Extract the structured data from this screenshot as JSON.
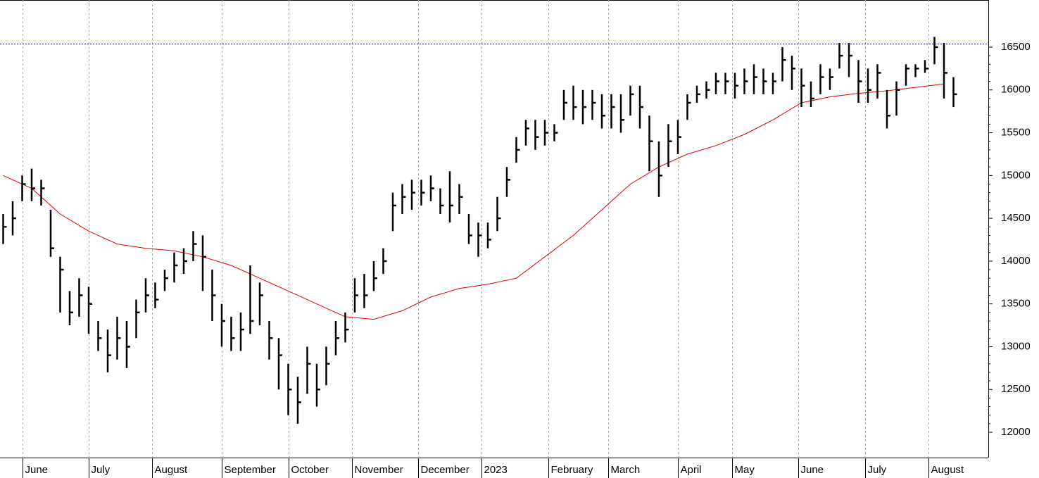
{
  "chart_data": {
    "type": "ohlc",
    "x": [
      0,
      3,
      6,
      9,
      12,
      15,
      18,
      21,
      24,
      27,
      30,
      33,
      36,
      39,
      42,
      45,
      48,
      51,
      54,
      57,
      60,
      63,
      66,
      69,
      72,
      75,
      78,
      81,
      84,
      87,
      90,
      93,
      96,
      99,
      102,
      105,
      108,
      111,
      114,
      117,
      120,
      123,
      126,
      129,
      132,
      135,
      138,
      141,
      144,
      147,
      150,
      153,
      156,
      159,
      162,
      165,
      168,
      171,
      174,
      177,
      180,
      183,
      186,
      189,
      192,
      195,
      198,
      201,
      204,
      207,
      210,
      213,
      216,
      219,
      222,
      225,
      228,
      231,
      234,
      237,
      240,
      243,
      246,
      249,
      252,
      255,
      258,
      261,
      264,
      267,
      270,
      273,
      276,
      279,
      282,
      285,
      288,
      291,
      294,
      297,
      300
    ],
    "high": [
      14550,
      14700,
      15000,
      15080,
      14950,
      14600,
      14050,
      13650,
      13800,
      13700,
      13300,
      13200,
      13350,
      13300,
      13550,
      13800,
      13750,
      13900,
      14100,
      14150,
      14350,
      14300,
      13900,
      13500,
      13350,
      13400,
      13950,
      13750,
      13300,
      13100,
      12800,
      12650,
      13000,
      12800,
      13000,
      13300,
      13400,
      13800,
      13850,
      14000,
      14150,
      14800,
      14900,
      14950,
      14950,
      15000,
      14850,
      15050,
      14900,
      14550,
      14450,
      14450,
      14750,
      15100,
      15450,
      15650,
      15650,
      15650,
      15600,
      16000,
      16050,
      16000,
      16000,
      15950,
      15950,
      15950,
      16050,
      16050,
      15700,
      15400,
      15600,
      15650,
      15950,
      16050,
      16100,
      16200,
      16200,
      16200,
      16250,
      16300,
      16250,
      16200,
      16500,
      16400,
      16250,
      16100,
      16300,
      16250,
      16550,
      16550,
      16350,
      16250,
      16300,
      16000,
      16100,
      16300,
      16300,
      16350,
      16620,
      16550,
      16150
    ],
    "low": [
      14200,
      14300,
      14700,
      14700,
      14650,
      14050,
      13400,
      13250,
      13350,
      13150,
      12950,
      12700,
      12850,
      12750,
      13100,
      13400,
      13450,
      13650,
      13750,
      13850,
      14000,
      13650,
      13300,
      13000,
      12950,
      12950,
      13150,
      13250,
      12850,
      12500,
      12200,
      12100,
      12450,
      12300,
      12550,
      12900,
      13050,
      13400,
      13450,
      13650,
      13850,
      14350,
      14550,
      14600,
      14650,
      14700,
      14550,
      14450,
      14550,
      14200,
      14050,
      14150,
      14350,
      14750,
      15150,
      15350,
      15300,
      15350,
      15400,
      15650,
      15650,
      15600,
      15650,
      15550,
      15550,
      15500,
      15700,
      15550,
      15050,
      14750,
      15100,
      15250,
      15650,
      15850,
      15900,
      15950,
      15950,
      15900,
      15950,
      15950,
      15950,
      15950,
      16100,
      16000,
      15800,
      15800,
      15950,
      16000,
      16250,
      16150,
      15850,
      15850,
      15900,
      15550,
      15700,
      16050,
      16150,
      16200,
      16300,
      15900,
      15800
    ],
    "close": [
      14400,
      14500,
      14900,
      14850,
      14850,
      14150,
      13900,
      13400,
      13600,
      13500,
      13100,
      12900,
      13100,
      13000,
      13400,
      13600,
      13550,
      13800,
      13950,
      14000,
      14200,
      14050,
      13600,
      13300,
      13100,
      13200,
      13300,
      13600,
      13100,
      12900,
      12500,
      12350,
      12800,
      12500,
      12800,
      13100,
      13200,
      13600,
      13600,
      13800,
      14000,
      14650,
      14750,
      14800,
      14800,
      14850,
      14650,
      14650,
      14750,
      14300,
      14300,
      14250,
      14500,
      14950,
      15300,
      15550,
      15450,
      15500,
      15500,
      15850,
      15800,
      15800,
      15850,
      15700,
      15800,
      15650,
      15950,
      15800,
      15400,
      15000,
      15400,
      15450,
      15850,
      15950,
      16000,
      16100,
      16100,
      16050,
      16100,
      16150,
      16100,
      16100,
      16350,
      16250,
      16050,
      15900,
      16150,
      16150,
      16400,
      16400,
      16100,
      16000,
      16200,
      15700,
      16000,
      16250,
      16250,
      16250,
      16500,
      16200,
      15950
    ],
    "color": "#000000",
    "moving_average": {
      "color": "#e00000",
      "x": [
        0,
        9,
        18,
        27,
        36,
        45,
        54,
        63,
        72,
        81,
        90,
        99,
        108,
        117,
        126,
        135,
        144,
        153,
        162,
        171,
        180,
        189,
        198,
        207,
        216,
        225,
        234,
        243,
        252,
        261,
        270,
        279,
        288,
        297
      ],
      "values": [
        15000,
        14850,
        14550,
        14350,
        14200,
        14150,
        14120,
        14050,
        13950,
        13800,
        13650,
        13500,
        13350,
        13320,
        13420,
        13580,
        13680,
        13730,
        13800,
        14050,
        14300,
        14600,
        14900,
        15100,
        15250,
        15350,
        15480,
        15650,
        15850,
        15920,
        15960,
        15990,
        16030,
        16070
      ]
    },
    "reference_line": {
      "value": 16540,
      "color": "#000080"
    },
    "xlim": [
      -1,
      311
    ],
    "xticks": [
      {
        "value": 6,
        "label": "June"
      },
      {
        "value": 27,
        "label": "July"
      },
      {
        "value": 47,
        "label": "August"
      },
      {
        "value": 69,
        "label": "September"
      },
      {
        "value": 90,
        "label": "October"
      },
      {
        "value": 110,
        "label": "November"
      },
      {
        "value": 131,
        "label": "December"
      },
      {
        "value": 151,
        "label": "2023"
      },
      {
        "value": 172,
        "label": "February"
      },
      {
        "value": 191,
        "label": "March"
      },
      {
        "value": 213,
        "label": "April"
      },
      {
        "value": 230,
        "label": "May"
      },
      {
        "value": 251,
        "label": "June"
      },
      {
        "value": 272,
        "label": "July"
      },
      {
        "value": 292,
        "label": "August"
      }
    ],
    "ylim": [
      11704,
      17051
    ],
    "yticks": [
      12000,
      12500,
      13000,
      13500,
      14000,
      14500,
      15000,
      15500,
      16000,
      16500
    ],
    "grid": true
  }
}
